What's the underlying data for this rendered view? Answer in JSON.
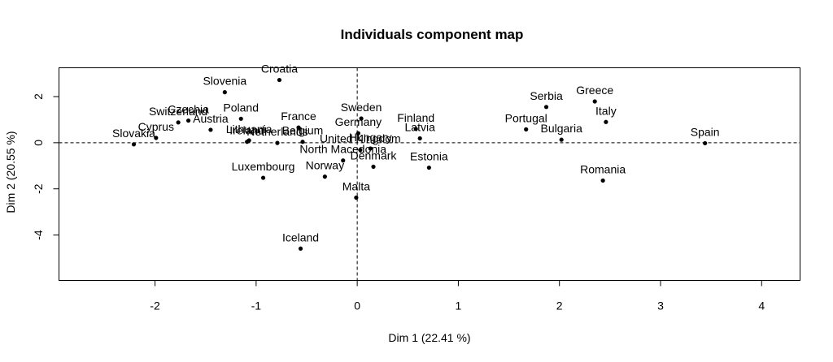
{
  "chart_data": {
    "type": "scatter",
    "title": "Individuals component map",
    "xlabel": "Dim 1 (22.41 %)",
    "ylabel": "Dim 2 (20.55 %)",
    "xlim": [
      -2.95,
      4.38
    ],
    "ylim": [
      -5.97,
      3.25
    ],
    "xticks": [
      -2,
      -1,
      0,
      1,
      2,
      3,
      4
    ],
    "yticks": [
      -4,
      -2,
      0,
      2
    ],
    "reference_lines": {
      "x": 0,
      "y": 0,
      "style": "dashed"
    },
    "grid": false,
    "points": [
      {
        "label": "Croatia",
        "x": -0.77,
        "y": 2.72
      },
      {
        "label": "Slovenia",
        "x": -1.31,
        "y": 2.19
      },
      {
        "label": "Poland",
        "x": -1.15,
        "y": 1.04
      },
      {
        "label": "Czechia",
        "x": -1.67,
        "y": 0.96
      },
      {
        "label": "Switzerland",
        "x": -1.77,
        "y": 0.88
      },
      {
        "label": "Austria",
        "x": -1.45,
        "y": 0.56
      },
      {
        "label": "Cyprus",
        "x": -1.99,
        "y": 0.21
      },
      {
        "label": "Slovakia",
        "x": -2.21,
        "y": -0.07
      },
      {
        "label": "Lithuania",
        "x": -1.07,
        "y": 0.1
      },
      {
        "label": "Ireland",
        "x": -1.09,
        "y": 0.04
      },
      {
        "label": "Netherlands",
        "x": -0.79,
        "y": -0.01
      },
      {
        "label": "France",
        "x": -0.58,
        "y": 0.66
      },
      {
        "label": "Belgium",
        "x": -0.54,
        "y": 0.04
      },
      {
        "label": "Sweden",
        "x": 0.04,
        "y": 1.05
      },
      {
        "label": "Germany",
        "x": 0.01,
        "y": 0.41
      },
      {
        "label": "Hungary",
        "x": 0.13,
        "y": -0.25
      },
      {
        "label": "United Kingdom",
        "x": 0.03,
        "y": -0.31
      },
      {
        "label": "North Macedonia",
        "x": -0.14,
        "y": -0.77
      },
      {
        "label": "Denmark",
        "x": 0.16,
        "y": -1.04
      },
      {
        "label": "Norway",
        "x": -0.32,
        "y": -1.47
      },
      {
        "label": "Luxembourg",
        "x": -0.93,
        "y": -1.52
      },
      {
        "label": "Malta",
        "x": -0.01,
        "y": -2.38
      },
      {
        "label": "Iceland",
        "x": -0.56,
        "y": -4.59
      },
      {
        "label": "Finland",
        "x": 0.58,
        "y": 0.6
      },
      {
        "label": "Latvia",
        "x": 0.62,
        "y": 0.19
      },
      {
        "label": "Estonia",
        "x": 0.71,
        "y": -1.08
      },
      {
        "label": "Serbia",
        "x": 1.87,
        "y": 1.55
      },
      {
        "label": "Greece",
        "x": 2.35,
        "y": 1.79
      },
      {
        "label": "Italy",
        "x": 2.46,
        "y": 0.9
      },
      {
        "label": "Portugal",
        "x": 1.67,
        "y": 0.58
      },
      {
        "label": "Bulgaria",
        "x": 2.02,
        "y": 0.13
      },
      {
        "label": "Romania",
        "x": 2.43,
        "y": -1.64
      },
      {
        "label": "Spain",
        "x": 3.44,
        "y": -0.02
      }
    ]
  }
}
